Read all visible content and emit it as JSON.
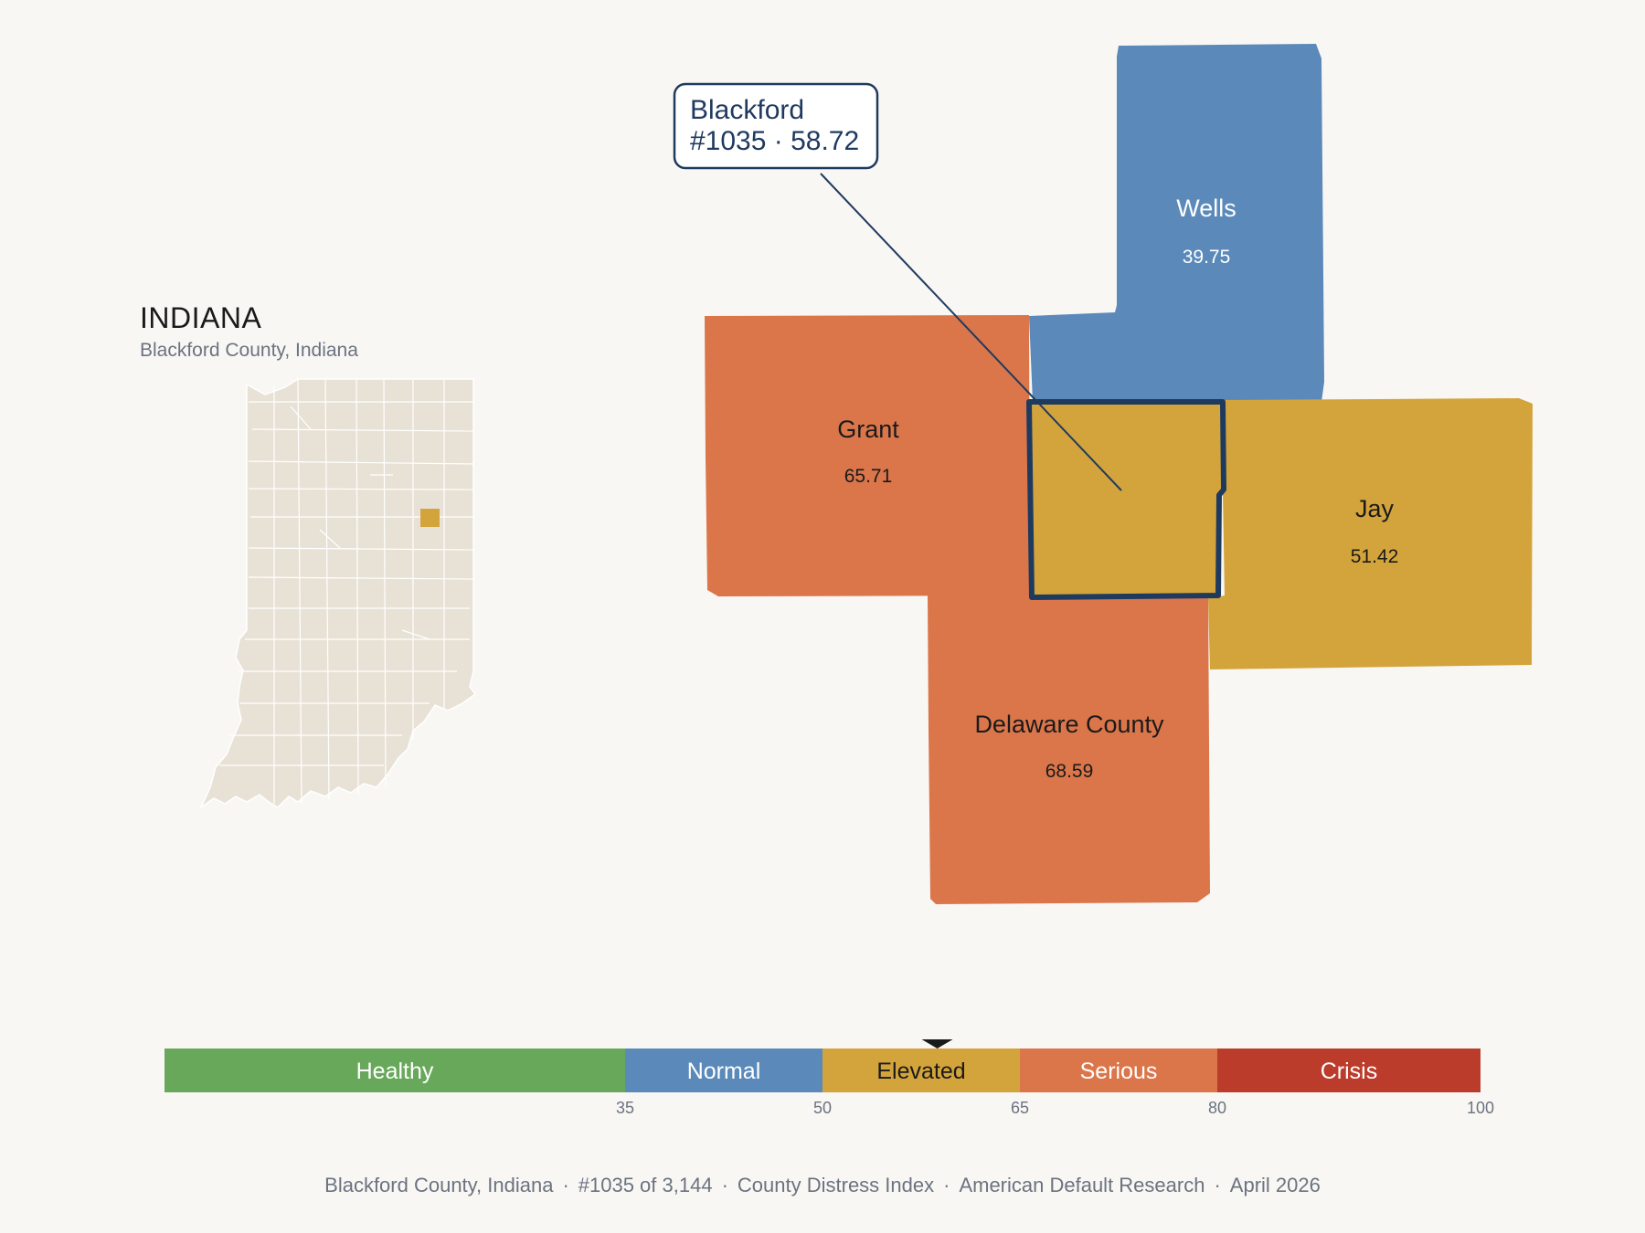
{
  "inset": {
    "title": "INDIANA",
    "subtitle": "Blackford County, Indiana",
    "base_color": "#e8e2d6",
    "border_color": "#ffffff",
    "highlight_color": "#d4a43c"
  },
  "callout": {
    "line1": "Blackford",
    "line2": "#1035 · 58.72",
    "color": "#1f3a5f"
  },
  "counties": [
    {
      "name": "Wells",
      "value": "39.75",
      "color": "#5b8aba",
      "text_color": "#ffffff"
    },
    {
      "name": "Grant",
      "value": "65.71",
      "color": "#db764b",
      "text_color": "#1a1a1a"
    },
    {
      "name": "Jay",
      "value": "51.42",
      "color": "#d4a43c",
      "text_color": "#1a1a1a"
    },
    {
      "name": "Delaware County",
      "value": "68.59",
      "color": "#db764b",
      "text_color": "#1a1a1a"
    },
    {
      "name": "Blackford",
      "value": "",
      "color": "#d4a43c",
      "text_color": "#1a1a1a"
    }
  ],
  "scale": {
    "min": 0,
    "max": 100,
    "marker_value": 58.72,
    "segments": [
      {
        "label": "Healthy",
        "from": 0,
        "to": 35,
        "color": "#68a85a",
        "text_color": "#ffffff"
      },
      {
        "label": "Normal",
        "from": 35,
        "to": 50,
        "color": "#5b8aba",
        "text_color": "#ffffff"
      },
      {
        "label": "Elevated",
        "from": 50,
        "to": 65,
        "color": "#d4a43c",
        "text_color": "#1a1a1a"
      },
      {
        "label": "Serious",
        "from": 65,
        "to": 80,
        "color": "#db764b",
        "text_color": "#ffffff"
      },
      {
        "label": "Crisis",
        "from": 80,
        "to": 100,
        "color": "#bb3c2b",
        "text_color": "#ffffff"
      }
    ],
    "ticks": [
      "35",
      "50",
      "65",
      "80",
      "100"
    ]
  },
  "footer": {
    "place": "Blackford County, Indiana",
    "rank": "#1035 of 3,144",
    "index": "County Distress Index",
    "source": "American Default Research",
    "date": "April 2026",
    "separator": "·"
  }
}
